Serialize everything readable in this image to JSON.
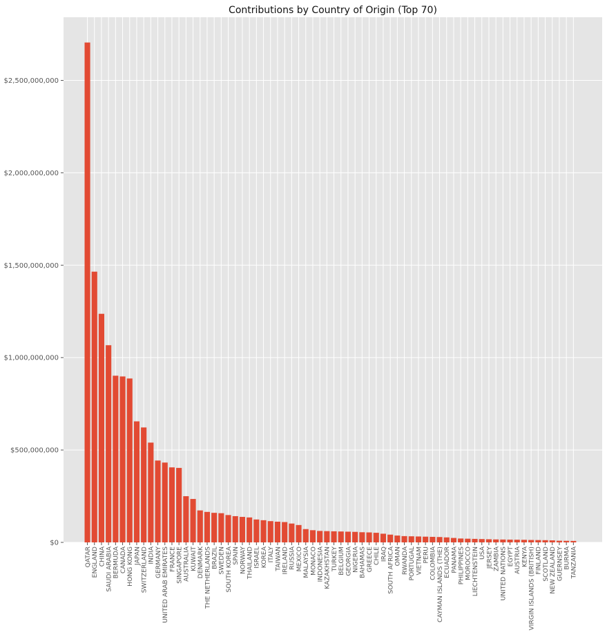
{
  "chart_data": {
    "type": "bar",
    "title": "Contributions by Country of Origin (Top 70)",
    "xlabel": "",
    "ylabel": "",
    "ylim": [
      0,
      2850000000
    ],
    "yticks": [
      0,
      500000000,
      1000000000,
      1500000000,
      2000000000,
      2500000000
    ],
    "ytick_labels": [
      "$0",
      "$500,000,000",
      "$1,000,000,000",
      "$1,500,000,000",
      "$2,000,000,000",
      "$2,500,000,000"
    ],
    "grid": true,
    "bar_color": "#e24a33",
    "background_color": "#e5e5e5",
    "grid_color": "#ffffff",
    "categories": [
      "QATAR",
      "ENGLAND",
      "CHINA",
      "SAUDI ARABIA",
      "BERMUDA",
      "CANADA",
      "HONG KONG",
      "JAPAN",
      "SWITZERLAND",
      "INDIA",
      "GERMANY",
      "UNITED ARAB EMIRATES",
      "FRANCE",
      "SINGAPORE",
      "AUSTRALIA",
      "KUWAIT",
      "DENMARK",
      "THE NETHERLANDS",
      "BRAZIL",
      "SWEDEN",
      "SOUTH KOREA",
      "SPAIN",
      "NORWAY",
      "THAILAND",
      "ISRAEL",
      "KOREA",
      "ITALY",
      "TAIWAN",
      "IRELAND",
      "RUSSIA",
      "MEXICO",
      "MALAYSIA",
      "MONACO",
      "INDONESIA",
      "KAZAKHSTAN",
      "TURKEY",
      "BELGIUM",
      "GEORGIA",
      "NIGERIA",
      "BAHAMAS",
      "GREECE",
      "CHILE",
      "IRAQ",
      "SOUTH AFRICA",
      "OMAN",
      "RWANDA",
      "PORTUGAL",
      "VIETNAM",
      "PERU",
      "COLOMBIA",
      "CAYMAN ISLANDS (THE)",
      "ECUADOR",
      "PANAMA",
      "PHILIPPINES",
      "MOROCCO",
      "LIECHTENSTEIN",
      "USA",
      "JERSEY",
      "ZAMBIA",
      "UNITED NATIONS",
      "EGYPT",
      "AUSTRIA",
      "KENYA",
      "VIRGIN ISLANDS (BRITISH)",
      "FINLAND",
      "SCOTLAND",
      "NEW ZEALAND",
      "GUERNSEY",
      "BURMA",
      "TANZANIA"
    ],
    "values": [
      2705000000,
      1465000000,
      1237000000,
      1067000000,
      902000000,
      898000000,
      887000000,
      655000000,
      622000000,
      540000000,
      443000000,
      432000000,
      406000000,
      403000000,
      250000000,
      235000000,
      173000000,
      165000000,
      160000000,
      158000000,
      148000000,
      142000000,
      138000000,
      135000000,
      124000000,
      120000000,
      115000000,
      112000000,
      110000000,
      102000000,
      94000000,
      72000000,
      66000000,
      62000000,
      61000000,
      60000000,
      59000000,
      58000000,
      57000000,
      55000000,
      54000000,
      52000000,
      47000000,
      42000000,
      37000000,
      34000000,
      33000000,
      32000000,
      31000000,
      30000000,
      29000000,
      27000000,
      24000000,
      21000000,
      20000000,
      19000000,
      18000000,
      17000000,
      16000000,
      15500000,
      15000000,
      14500000,
      14000000,
      13000000,
      12500000,
      12000000,
      11000000,
      9000000,
      8500000,
      8000000
    ]
  }
}
